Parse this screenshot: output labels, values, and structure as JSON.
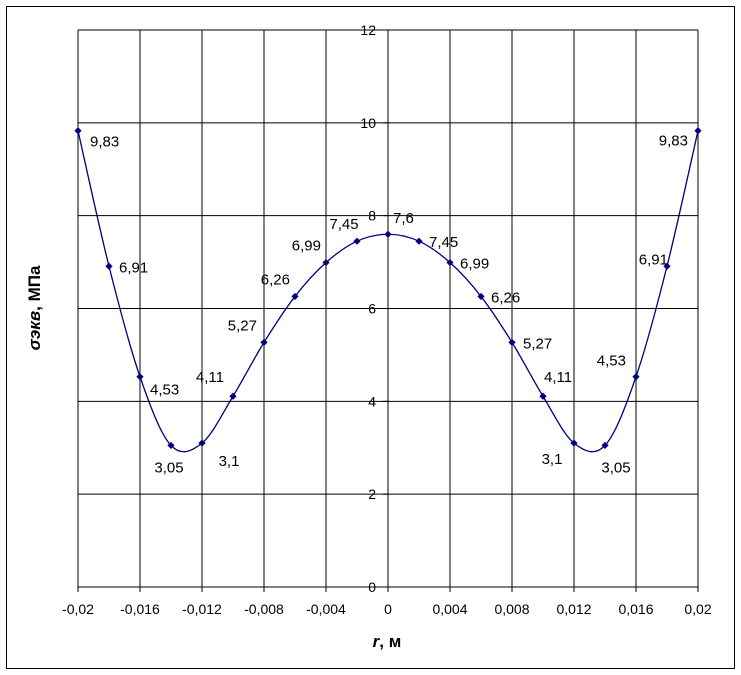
{
  "chart_data": {
    "type": "line",
    "title": "",
    "xlabel": "r,  м",
    "ylabel": "σэкв, МПа",
    "xlim": [
      -0.02,
      0.02
    ],
    "ylim": [
      0,
      12
    ],
    "x_ticks": [
      "-0,02",
      "-0,016",
      "-0,012",
      "-0,008",
      "-0,004",
      "0",
      "0,004",
      "0,008",
      "0,012",
      "0,016",
      "0,02"
    ],
    "y_ticks": [
      "0",
      "2",
      "4",
      "6",
      "8",
      "10",
      "12"
    ],
    "grid": true,
    "legend": "none",
    "series": [
      {
        "x": [
          -0.02,
          -0.018,
          -0.016,
          -0.014,
          -0.012,
          -0.01,
          -0.008,
          -0.006,
          -0.004,
          -0.002,
          0,
          0.002,
          0.004,
          0.006,
          0.008,
          0.01,
          0.012,
          0.014,
          0.016,
          0.018,
          0.02
        ],
        "y": [
          9.83,
          6.91,
          4.53,
          3.05,
          3.1,
          4.11,
          5.27,
          6.26,
          6.99,
          7.45,
          7.6,
          7.45,
          6.99,
          6.26,
          5.27,
          4.11,
          3.1,
          3.05,
          4.53,
          6.91,
          9.83
        ],
        "labels": [
          "9,83",
          "6,91",
          "4,53",
          "3,05",
          "3,1",
          "4,11",
          "5,27",
          "6,26",
          "6,99",
          "7,45",
          "7,6",
          "7,45",
          "6,99",
          "6,26",
          "5,27",
          "4,11",
          "3,1",
          "3,05",
          "4,53",
          "6,91",
          "9,83"
        ],
        "color": "#000080"
      }
    ]
  }
}
